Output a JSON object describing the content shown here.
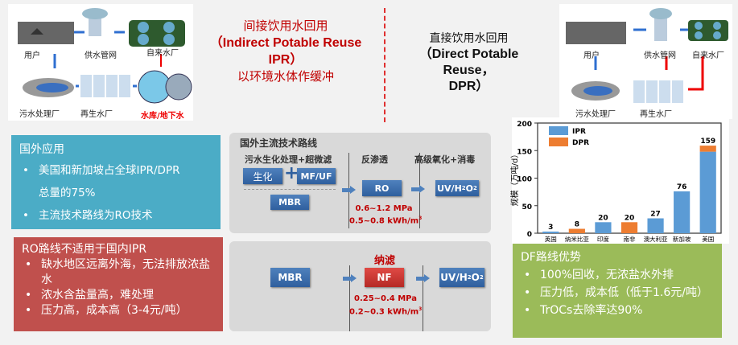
{
  "ipr": {
    "title_line1": "间接饮用水回用",
    "title_line2": "（Indirect Potable Reuse",
    "title_line3": "IPR）",
    "title_line4": "以环境水体作缓冲",
    "diagram_labels": {
      "users": "用户",
      "pipe_network": "供水管网",
      "water_plant": "自来水厂",
      "wastewater_plant": "污水处理厂",
      "reclaimed_plant": "再生水厂",
      "reservoir": "水库/地下水"
    }
  },
  "dpr": {
    "title_line1": "直接饮用水回用",
    "title_line2": "（Direct Potable Reuse，",
    "title_line3": "DPR）",
    "diagram_labels": {
      "users": "用户",
      "pipe_network": "供水管网",
      "water_plant": "自来水厂",
      "wastewater_plant": "污水处理厂",
      "reclaimed_plant": "再生水厂"
    }
  },
  "foreign_panel": {
    "title": "国外应用",
    "items": [
      "美国和新加坡占全球IPR/DPR",
      "总量的75%",
      "主流技术路线为RO技术"
    ]
  },
  "ro_panel": {
    "title": "RO路线不适用于国内IPR",
    "items": [
      "缺水地区远离外海，无法排放浓盐水",
      "浓水含盐量高，难处理",
      "压力高，成本高（3-4元/吨）"
    ]
  },
  "df_panel": {
    "title": "DF路线优势",
    "items": [
      "100%回收，无浓盐水外排",
      "压力低，成本低（低于1.6元/吨）",
      "TrOCs去除率达90%"
    ]
  },
  "route1": {
    "title": "国外主流技术路线",
    "stage1": "污水生化处理+超微滤",
    "stage2": "反渗透",
    "stage3": "高级氧化+消毒",
    "bio": "生化",
    "plus": "+",
    "mfuf": "MF/UF",
    "mbr": "MBR",
    "ro": "RO",
    "uv": "UV/H",
    "pressure": "0.6~1.2 MPa",
    "energy": "0.5~0.8 kWh/m"
  },
  "route2": {
    "nf_label": "纳滤",
    "mbr": "MBR",
    "nf": "NF",
    "uv": "UV/H",
    "pressure": "0.25~0.4 MPa",
    "energy": "0.2~0.3 kWh/m"
  },
  "chart_data": {
    "type": "bar",
    "stacked": true,
    "ylabel": "规模（万吨/d）",
    "ylim": [
      0,
      200
    ],
    "yticks": [
      0,
      50,
      100,
      150,
      200
    ],
    "categories": [
      "英国",
      "纳米比亚",
      "印度",
      "南非",
      "澳大利亚",
      "新加坡",
      "美国"
    ],
    "series": [
      {
        "name": "IPR",
        "color": "#5b9bd5",
        "values": [
          3,
          0,
          20,
          0,
          27,
          76,
          148
        ]
      },
      {
        "name": "DPR",
        "color": "#ed7d31",
        "values": [
          0,
          8,
          0,
          20,
          0,
          0,
          11
        ]
      }
    ],
    "totals": [
      3,
      8,
      20,
      20,
      27,
      76,
      159
    ],
    "legend": "top-left"
  }
}
